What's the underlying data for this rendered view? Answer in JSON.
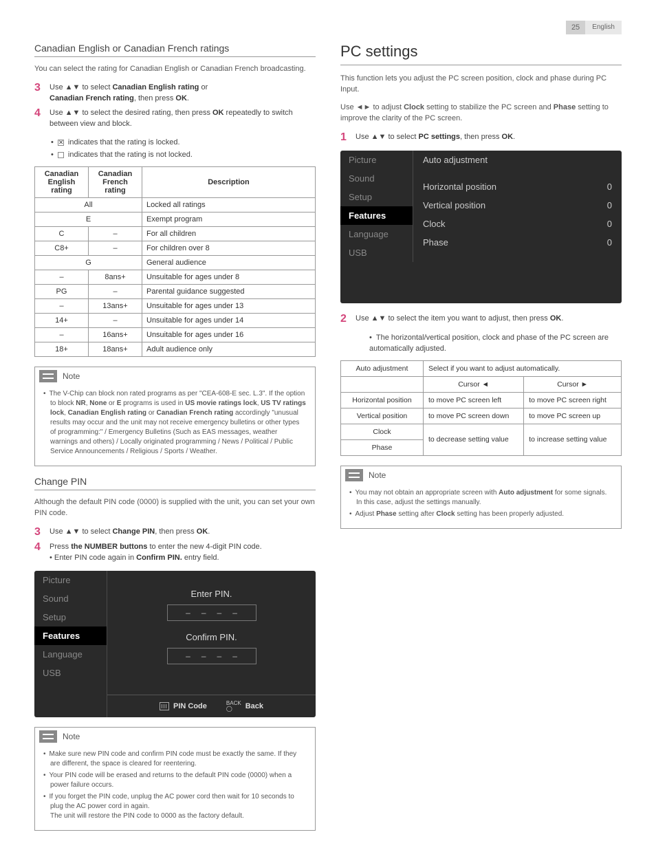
{
  "header": {
    "page": "25",
    "lang": "English"
  },
  "left": {
    "section1_title": "Canadian English or Canadian French ratings",
    "section1_intro": "You can select the rating for Canadian English or Canadian French broadcasting.",
    "step3": "Use ▲▼ to select ",
    "step3_b1": "Canadian English rating",
    "step3_or": " or ",
    "step3_b2": "Canadian French rating",
    "step3_end": ", then press ",
    "step3_ok": "OK",
    "step3_dot": ".",
    "step4": "Use ▲▼ to select the desired rating, then press ",
    "step4_ok": "OK",
    "step4_end": " repeatedly to switch between view and block.",
    "bullet_locked": " indicates that the rating is locked.",
    "bullet_unlocked": " indicates that the rating is not locked.",
    "table_h1": "Canadian English rating",
    "table_h2": "Canadian French rating",
    "table_h3": "Description",
    "rows": [
      {
        "e": "All",
        "f": "",
        "d": "Locked all ratings",
        "span": true
      },
      {
        "e": "E",
        "f": "",
        "d": "Exempt program",
        "span": true
      },
      {
        "e": "C",
        "f": "–",
        "d": "For all children"
      },
      {
        "e": "C8+",
        "f": "–",
        "d": "For children over 8"
      },
      {
        "e": "G",
        "f": "",
        "d": "General audience",
        "span": true
      },
      {
        "e": "–",
        "f": "8ans+",
        "d": "Unsuitable for ages under 8"
      },
      {
        "e": "PG",
        "f": "–",
        "d": "Parental guidance suggested"
      },
      {
        "e": "–",
        "f": "13ans+",
        "d": "Unsuitable for ages under 13"
      },
      {
        "e": "14+",
        "f": "–",
        "d": "Unsuitable for ages under 14"
      },
      {
        "e": "–",
        "f": "16ans+",
        "d": "Unsuitable for ages under 16"
      },
      {
        "e": "18+",
        "f": "18ans+",
        "d": "Adult audience only"
      }
    ],
    "note1_title": "Note",
    "note1_body": "The V-Chip can block non rated programs as per \"CEA-608-E sec. L.3\". If the option to block NR, None or E programs is used in US movie ratings lock, US TV ratings lock, Canadian English rating or Canadian French rating accordingly \"unusual results may occur and the unit may not receive emergency bulletins or other types of programming:\" / Emergency Bulletins (Such as EAS messages, weather warnings and others) / Locally originated programming / News / Political / Public Service Announcements / Religious / Sports / Weather.",
    "section2_title": "Change PIN",
    "section2_intro": "Although the default PIN code (0000) is supplied with the unit, you can set your own PIN code.",
    "s2_step3": "Use ▲▼ to select ",
    "s2_step3_b": "Change PIN",
    "s2_step3_end": ", then press ",
    "s2_step3_ok": "OK",
    "s2_step4a": "Press ",
    "s2_step4b": "the NUMBER buttons",
    "s2_step4c": " to enter the new 4-digit PIN code.",
    "s2_step4d": "Enter PIN code again in ",
    "s2_step4e": "Confirm PIN.",
    "s2_step4f": " entry field.",
    "osd_menu": [
      "Picture",
      "Sound",
      "Setup",
      "Features",
      "Language",
      "USB"
    ],
    "osd_enter": "Enter PIN.",
    "osd_confirm": "Confirm PIN.",
    "osd_foot1": "PIN Code",
    "osd_foot2": "Back",
    "osd_foot2_label": "BACK",
    "note2_title": "Note",
    "note2_items": [
      "Make sure new PIN code and confirm PIN code must be exactly the same. If they are different, the space is cleared for reentering.",
      "Your PIN code will be erased and returns to the default PIN code (0000) when a power failure occurs.",
      "If you forget the PIN code, unplug the AC power cord then wait for 10 seconds to plug the AC power cord in again.\nThe unit will restore the PIN code to 0000 as the factory default."
    ]
  },
  "right": {
    "title": "PC settings",
    "intro1": "This function lets you adjust the PC screen position, clock and phase during PC Input.",
    "intro2a": "Use ◄► to adjust ",
    "intro2b": "Clock",
    "intro2c": " setting to stabilize the PC screen and ",
    "intro2d": "Phase",
    "intro2e": " setting to improve the clarity of the PC screen.",
    "step1": "Use ▲▼ to select ",
    "step1_b": "PC settings",
    "step1_end": ", then  press ",
    "step1_ok": "OK",
    "osd_menu": [
      "Picture",
      "Sound",
      "Setup",
      "Features",
      "Language",
      "USB"
    ],
    "osd_opts": [
      {
        "l": "Auto adjustment",
        "v": ""
      },
      {
        "l": "",
        "v": ""
      },
      {
        "l": "Horizontal position",
        "v": "0"
      },
      {
        "l": "Vertical position",
        "v": "0"
      },
      {
        "l": "Clock",
        "v": "0"
      },
      {
        "l": "Phase",
        "v": "0"
      }
    ],
    "step2": "Use ▲▼ to select the item you want to adjust, then press ",
    "step2_ok": "OK",
    "step2_bullet": "The horizontal/vertical position, clock and phase of the PC screen are automatically adjusted.",
    "table": {
      "r1": [
        "Auto adjustment",
        "Select if you want to adjust automatically."
      ],
      "r2": [
        "",
        "Cursor ◄",
        "Cursor ►"
      ],
      "r3": [
        "Horizontal position",
        "to move PC screen left",
        "to move PC screen right"
      ],
      "r4": [
        "Vertical position",
        "to move PC screen down",
        "to move PC screen up"
      ],
      "r5a": "Clock",
      "r5b": "Phase",
      "r5c": "to decrease setting value",
      "r5d": "to increase setting value"
    },
    "note_title": "Note",
    "note_items": [
      "You may not obtain an appropriate screen with Auto adjustment for some signals. In this case, adjust the settings manually.",
      "Adjust Phase setting after Clock setting has been properly adjusted."
    ]
  }
}
